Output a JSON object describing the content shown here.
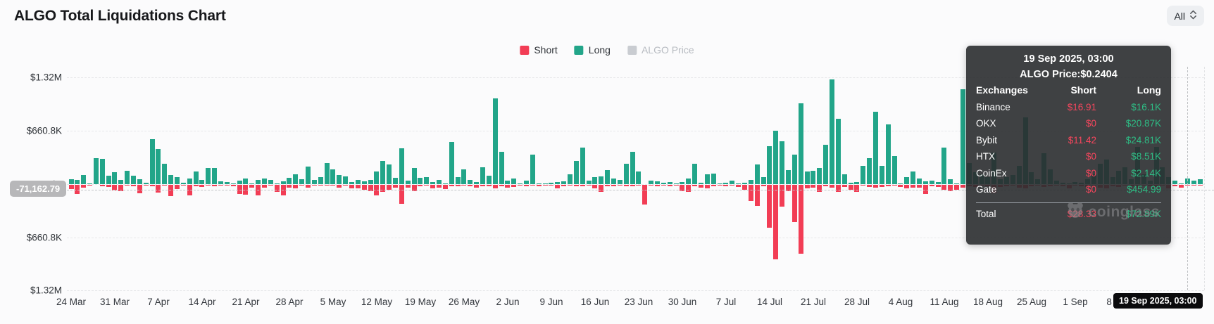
{
  "header": {
    "title": "ALGO Total Liquidations Chart"
  },
  "controls": {
    "range_label": "All"
  },
  "legend": {
    "items": [
      {
        "label": "Short",
        "color": "#f23d55",
        "active": true
      },
      {
        "label": "Long",
        "color": "#22a589",
        "active": true
      },
      {
        "label": "ALGO Price",
        "color": "#c9ccd1",
        "active": false
      }
    ]
  },
  "crosshair": {
    "y_value_label": "-71,162.79",
    "x_value_label": "19 Sep 2025, 03:00"
  },
  "tooltip": {
    "datetime": "19 Sep 2025, 03:00",
    "price_line": "ALGO Price:$0.2404",
    "columns": [
      "Exchanges",
      "Short",
      "Long"
    ],
    "rows": [
      [
        "Binance",
        "$16.91",
        "$16.1K"
      ],
      [
        "OKX",
        "$0",
        "$20.87K"
      ],
      [
        "Bybit",
        "$11.42",
        "$24.81K"
      ],
      [
        "HTX",
        "$0",
        "$8.51K"
      ],
      [
        "CoinEx",
        "$0",
        "$2.14K"
      ],
      [
        "Gate",
        "$0",
        "$454.99"
      ]
    ],
    "total": [
      "Total",
      "$28.33",
      "$72.89K"
    ],
    "watermark": "coinglass"
  },
  "chart_data": {
    "type": "bar",
    "subtype": "mirrored positive/negative liquidation bars, Long above zero, Short below zero",
    "unit": "USD thousands",
    "title": "ALGO Total Liquidations Chart",
    "ylim": [
      -1320,
      1320
    ],
    "y_ticks": [
      "$1.32M",
      "$660.8K",
      "$0",
      "$660.8K",
      "$1.32M"
    ],
    "grid": true,
    "legend_position": "top-center",
    "x_ticks": [
      "24 Mar",
      "31 Mar",
      "7 Apr",
      "14 Apr",
      "21 Apr",
      "28 Apr",
      "5 May",
      "12 May",
      "19 May",
      "26 May",
      "2 Jun",
      "9 Jun",
      "16 Jun",
      "23 Jun",
      "30 Jun",
      "7 Jul",
      "14 Jul",
      "21 Jul",
      "28 Jul",
      "4 Aug",
      "11 Aug",
      "18 Aug",
      "25 Aug",
      "1 Sep",
      "8 Sep"
    ],
    "hovered_point": {
      "datetime": "19 Sep 2025, 03:00",
      "price": 0.2404,
      "short_total_usd": 28.33,
      "long_total_usd": 72890
    },
    "series": [
      {
        "name": "Long",
        "color": "#22a589",
        "values": [
          60,
          49,
          117,
          11,
          326,
          317,
          106,
          152,
          49,
          169,
          106,
          60,
          20,
          555,
          432,
          255,
          112,
          89,
          17,
          69,
          154,
          49,
          197,
          197,
          31,
          26,
          11,
          40,
          69,
          3,
          54,
          69,
          49,
          11,
          31,
          77,
          126,
          60,
          220,
          49,
          89,
          260,
          183,
          112,
          97,
          26,
          54,
          31,
          54,
          154,
          283,
          240,
          77,
          440,
          40,
          197,
          77,
          89,
          26,
          49,
          3,
          526,
          83,
          183,
          49,
          26,
          212,
          106,
          1060,
          403,
          40,
          69,
          11,
          40,
          363,
          3,
          6,
          20,
          26,
          31,
          126,
          283,
          455,
          40,
          89,
          97,
          174,
          69,
          54,
          254,
          397,
          154,
          0,
          40,
          31,
          20,
          26,
          11,
          26,
          69,
          249,
          20,
          126,
          134,
          3,
          20,
          40,
          3,
          20,
          54,
          240,
          83,
          469,
          661,
          532,
          174,
          369,
          998,
          154,
          169,
          203,
          483,
          1298,
          812,
          126,
          20,
          26,
          226,
          326,
          898,
          226,
          735,
          346,
          11,
          83,
          154,
          69,
          31,
          40,
          26,
          450,
          60,
          10,
          1170,
          260,
          150,
          120,
          90,
          390,
          60,
          83,
          112,
          230,
          830,
          150,
          60,
          380,
          180,
          40,
          20,
          10,
          30,
          20,
          60,
          120,
          250,
          300,
          90,
          168,
          206,
          60,
          460,
          120,
          40,
          460,
          206,
          90,
          40,
          10,
          73,
          46,
          60
        ]
      },
      {
        "name": "Short",
        "color": "#f23d55",
        "values": [
          54,
          111,
          37,
          9,
          0,
          17,
          26,
          66,
          74,
          9,
          17,
          103,
          3,
          17,
          94,
          9,
          140,
          54,
          9,
          132,
          17,
          26,
          9,
          17,
          3,
          9,
          17,
          117,
          123,
          37,
          132,
          37,
          9,
          83,
          132,
          31,
          46,
          3,
          31,
          3,
          9,
          3,
          9,
          31,
          3,
          46,
          46,
          60,
          74,
          132,
          89,
          60,
          31,
          232,
          31,
          74,
          17,
          9,
          46,
          31,
          54,
          17,
          17,
          3,
          17,
          37,
          17,
          17,
          46,
          17,
          31,
          26,
          9,
          17,
          9,
          17,
          6,
          9,
          46,
          17,
          9,
          17,
          17,
          9,
          46,
          89,
          17,
          17,
          9,
          17,
          17,
          9,
          246,
          9,
          17,
          9,
          17,
          9,
          74,
          89,
          17,
          31,
          46,
          17,
          9,
          17,
          9,
          26,
          60,
          203,
          260,
          17,
          532,
          918,
          266,
          74,
          460,
          855,
          46,
          31,
          83,
          17,
          31,
          89,
          26,
          60,
          83,
          9,
          26,
          31,
          26,
          17,
          9,
          26,
          46,
          31,
          37,
          111,
          17,
          26,
          60,
          77,
          60,
          31,
          17,
          26,
          9,
          17,
          106,
          26,
          17,
          9,
          37,
          46,
          17,
          9,
          26,
          17,
          9,
          17,
          40,
          9,
          17,
          26,
          9,
          31,
          46,
          17,
          26,
          9,
          17,
          31,
          9,
          17,
          26,
          9,
          40,
          17,
          31,
          0.03,
          9,
          3
        ]
      }
    ]
  }
}
